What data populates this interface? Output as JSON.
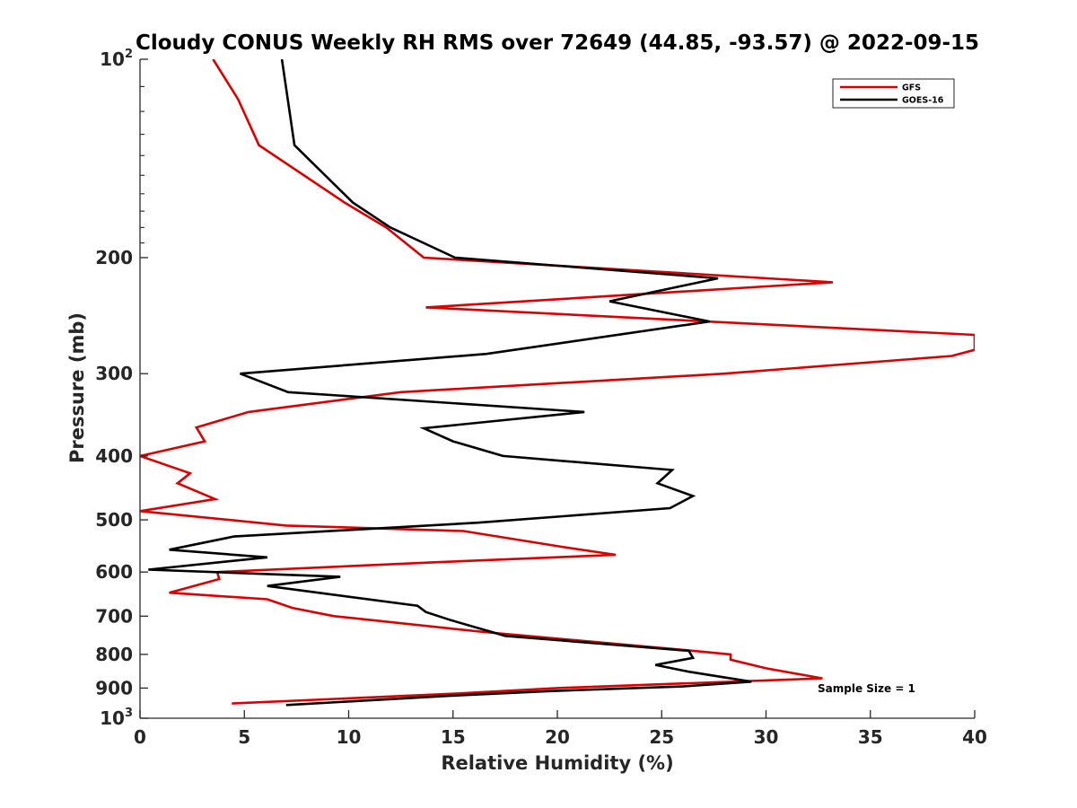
{
  "chart_data": {
    "type": "line",
    "title": "Cloudy CONUS Weekly RH RMS over 72649 (44.85, -93.57) @ 2022-09-15",
    "xlabel": "Relative Humidity (%)",
    "ylabel": "Pressure (mb)",
    "xlim": [
      0,
      40
    ],
    "ylim": [
      100,
      1000
    ],
    "y_scale": "log",
    "y_reversed": true,
    "grid": false,
    "legend_position": "top-right",
    "x_ticks": [
      0,
      5,
      10,
      15,
      20,
      25,
      30,
      35,
      40
    ],
    "y_ticks": [
      {
        "value": 100,
        "base": "10",
        "exp": "2"
      },
      {
        "value": 200,
        "label": "200"
      },
      {
        "value": 300,
        "label": "300"
      },
      {
        "value": 400,
        "label": "400"
      },
      {
        "value": 500,
        "label": "500"
      },
      {
        "value": 600,
        "label": "600"
      },
      {
        "value": 700,
        "label": "700"
      },
      {
        "value": 800,
        "label": "800"
      },
      {
        "value": 900,
        "label": "900"
      },
      {
        "value": 1000,
        "base": "10",
        "exp": "3"
      }
    ],
    "annotation": "Sample Size = 1",
    "series": [
      {
        "name": "GFS",
        "color": "#dd0000",
        "points": [
          [
            3.5,
            100
          ],
          [
            4.7,
            115
          ],
          [
            5.7,
            135
          ],
          [
            9.8,
            165
          ],
          [
            11.8,
            180
          ],
          [
            13.6,
            200
          ],
          [
            33.2,
            218
          ],
          [
            13.7,
            238
          ],
          [
            40.0,
            262
          ],
          [
            40.0,
            276
          ],
          [
            38.9,
            282
          ],
          [
            28.0,
            300
          ],
          [
            12.5,
            320
          ],
          [
            5.2,
            343
          ],
          [
            2.7,
            362
          ],
          [
            3.1,
            380
          ],
          [
            0.0,
            400
          ],
          [
            2.4,
            425
          ],
          [
            1.8,
            440
          ],
          [
            3.6,
            465
          ],
          [
            0.0,
            485
          ],
          [
            7.0,
            510
          ],
          [
            15.5,
            520
          ],
          [
            20.3,
            550
          ],
          [
            22.8,
            565
          ],
          [
            14.0,
            580
          ],
          [
            3.7,
            600
          ],
          [
            3.8,
            615
          ],
          [
            1.4,
            645
          ],
          [
            6.1,
            660
          ],
          [
            7.3,
            680
          ],
          [
            9.3,
            700
          ],
          [
            16.5,
            740
          ],
          [
            26.5,
            790
          ],
          [
            28.3,
            800
          ],
          [
            28.3,
            815
          ],
          [
            30.0,
            840
          ],
          [
            32.7,
            870
          ],
          [
            20.0,
            900
          ],
          [
            15.0,
            918
          ],
          [
            4.4,
            950
          ]
        ]
      },
      {
        "name": "GOES-16",
        "color": "#000000",
        "points": [
          [
            6.8,
            100
          ],
          [
            7.4,
            135
          ],
          [
            10.2,
            165
          ],
          [
            12.0,
            180
          ],
          [
            15.1,
            200
          ],
          [
            27.7,
            215
          ],
          [
            22.5,
            233
          ],
          [
            27.3,
            250
          ],
          [
            16.6,
            280
          ],
          [
            4.8,
            300
          ],
          [
            7.1,
            320
          ],
          [
            21.3,
            343
          ],
          [
            13.6,
            363
          ],
          [
            15.0,
            380
          ],
          [
            17.4,
            400
          ],
          [
            25.5,
            420
          ],
          [
            24.8,
            440
          ],
          [
            26.5,
            460
          ],
          [
            25.4,
            480
          ],
          [
            16.2,
            505
          ],
          [
            4.5,
            530
          ],
          [
            1.4,
            555
          ],
          [
            6.1,
            570
          ],
          [
            0.4,
            595
          ],
          [
            9.6,
            610
          ],
          [
            6.1,
            630
          ],
          [
            13.3,
            675
          ],
          [
            13.7,
            690
          ],
          [
            14.9,
            710
          ],
          [
            17.5,
            750
          ],
          [
            26.3,
            790
          ],
          [
            26.5,
            810
          ],
          [
            24.7,
            830
          ],
          [
            26.3,
            850
          ],
          [
            29.3,
            880
          ],
          [
            26.0,
            895
          ],
          [
            19.5,
            910
          ],
          [
            14.8,
            925
          ],
          [
            7.0,
            955
          ]
        ]
      }
    ]
  }
}
